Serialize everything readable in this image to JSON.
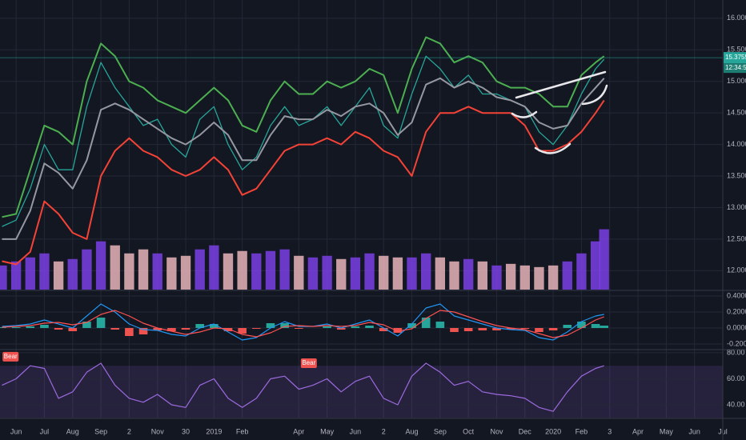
{
  "chart_data": [
    {
      "type": "line",
      "x": [
        -0.5,
        0,
        0.5,
        1,
        1.5,
        2,
        2.5,
        3,
        3.5,
        4,
        4.5,
        5,
        5.5,
        6,
        6.5,
        7,
        7.5,
        8,
        8.5,
        9,
        9.5,
        10,
        10.5,
        11,
        11.5,
        12,
        12.5,
        13,
        13.5,
        14,
        14.5,
        15,
        15.5,
        16,
        16.5,
        17,
        17.5,
        18,
        18.5,
        19,
        19.5,
        20,
        20.5,
        20.8
      ],
      "xlim": [
        -0.57,
        25
      ],
      "xticks": [
        {
          "value": 0,
          "label": "Jun"
        },
        {
          "value": 1,
          "label": "Jul"
        },
        {
          "value": 2,
          "label": "Aug"
        },
        {
          "value": 3,
          "label": "Sep"
        },
        {
          "value": 4,
          "label": "2"
        },
        {
          "value": 5,
          "label": "Nov"
        },
        {
          "value": 6,
          "label": "30"
        },
        {
          "value": 7,
          "label": "2019"
        },
        {
          "value": 8,
          "label": "Feb"
        },
        {
          "value": 10,
          "label": "Apr"
        },
        {
          "value": 11,
          "label": "May"
        },
        {
          "value": 12,
          "label": "Jun"
        },
        {
          "value": 13,
          "label": "2"
        },
        {
          "value": 14,
          "label": "Aug"
        },
        {
          "value": 15,
          "label": "Sep"
        },
        {
          "value": 16,
          "label": "Oct"
        },
        {
          "value": 17,
          "label": "Nov"
        },
        {
          "value": 18,
          "label": "Dec"
        },
        {
          "value": 19,
          "label": "2020"
        },
        {
          "value": 20,
          "label": "Feb"
        },
        {
          "value": 21,
          "label": "3"
        },
        {
          "value": 22,
          "label": "Apr"
        },
        {
          "value": 23,
          "label": "May"
        },
        {
          "value": 24,
          "label": "Jun"
        },
        {
          "value": 25,
          "label": "Jul"
        }
      ],
      "ylim": [
        11.7,
        16.29
      ],
      "yticks": [
        {
          "value": 16,
          "label": "16.00000"
        },
        {
          "value": 15.5,
          "label": "15.50000"
        },
        {
          "value": 15,
          "label": "15.00000"
        },
        {
          "value": 14.5,
          "label": "14.50000"
        },
        {
          "value": 14,
          "label": "14.00000"
        },
        {
          "value": 13.5,
          "label": "13.50000"
        },
        {
          "value": 13,
          "label": "13.00000"
        },
        {
          "value": 12.5,
          "label": "12.50000"
        },
        {
          "value": 12,
          "label": "12.00000"
        }
      ],
      "grid": true,
      "series": [
        {
          "color": "#26a69a",
          "width": 1.3,
          "values": [
            12.7,
            12.8,
            13.3,
            14.0,
            13.6,
            13.6,
            14.6,
            15.3,
            14.9,
            14.6,
            14.3,
            14.4,
            14.0,
            13.8,
            14.4,
            14.6,
            14.0,
            13.6,
            13.8,
            14.3,
            14.6,
            14.3,
            14.4,
            14.6,
            14.3,
            14.6,
            14.9,
            14.3,
            14.1,
            14.8,
            15.4,
            15.2,
            14.9,
            15.1,
            14.8,
            14.8,
            14.7,
            14.6,
            14.2,
            14.0,
            14.3,
            14.8,
            15.2,
            15.35
          ]
        },
        {
          "color": "#4caf50",
          "width": 2,
          "values": [
            12.85,
            12.9,
            13.6,
            14.3,
            14.2,
            14.0,
            15.0,
            15.6,
            15.4,
            15.0,
            14.9,
            14.7,
            14.6,
            14.5,
            14.7,
            14.9,
            14.7,
            14.3,
            14.2,
            14.7,
            15.0,
            14.8,
            14.8,
            15.0,
            14.9,
            15.0,
            15.2,
            15.1,
            14.5,
            15.2,
            15.7,
            15.6,
            15.3,
            15.4,
            15.3,
            15.0,
            14.9,
            14.9,
            14.8,
            14.6,
            14.6,
            15.1,
            15.3,
            15.4
          ]
        },
        {
          "color": "#9598a1",
          "width": 2,
          "values": [
            12.5,
            12.5,
            12.95,
            13.7,
            13.55,
            13.3,
            13.75,
            14.55,
            14.65,
            14.55,
            14.4,
            14.25,
            14.1,
            14.0,
            14.15,
            14.35,
            14.15,
            13.75,
            13.75,
            14.15,
            14.45,
            14.4,
            14.4,
            14.55,
            14.45,
            14.6,
            14.65,
            14.5,
            14.15,
            14.35,
            14.95,
            15.05,
            14.9,
            15.0,
            14.9,
            14.75,
            14.7,
            14.6,
            14.35,
            14.25,
            14.3,
            14.65,
            14.9,
            15.05
          ]
        },
        {
          "color": "#f44336",
          "width": 2,
          "values": [
            12.15,
            12.1,
            12.3,
            13.1,
            12.9,
            12.6,
            12.5,
            13.5,
            13.9,
            14.1,
            13.9,
            13.8,
            13.6,
            13.5,
            13.6,
            13.8,
            13.6,
            13.2,
            13.3,
            13.6,
            13.9,
            14.0,
            14.0,
            14.1,
            14.0,
            14.2,
            14.1,
            13.9,
            13.8,
            13.5,
            14.2,
            14.5,
            14.5,
            14.6,
            14.5,
            14.5,
            14.5,
            14.3,
            13.9,
            13.9,
            14.0,
            14.2,
            14.5,
            14.7
          ]
        }
      ],
      "volume": {
        "ylim": [
          0,
          360
        ],
        "up_color": "#7b3fe4",
        "down_color": "#e8b4b8",
        "values": [
          30,
          35,
          40,
          45,
          35,
          38,
          50,
          60,
          55,
          45,
          50,
          45,
          40,
          42,
          50,
          55,
          45,
          48,
          45,
          48,
          50,
          42,
          40,
          42,
          38,
          40,
          45,
          42,
          40,
          40,
          45,
          40,
          35,
          38,
          35,
          30,
          32,
          30,
          28,
          30,
          35,
          45,
          60,
          75
        ]
      },
      "last_price": {
        "value": 15.37557,
        "label": "15.37557"
      },
      "countdown": "12:34:59"
    },
    {
      "type": "macd",
      "x": [
        -0.5,
        0,
        0.5,
        1,
        1.5,
        2,
        2.5,
        3,
        3.5,
        4,
        4.5,
        5,
        5.5,
        6,
        6.5,
        7,
        7.5,
        8,
        8.5,
        9,
        9.5,
        10,
        10.5,
        11,
        11.5,
        12,
        12.5,
        13,
        13.5,
        14,
        14.5,
        15,
        15.5,
        16,
        16.5,
        17,
        17.5,
        18,
        18.5,
        19,
        19.5,
        20,
        20.5,
        20.8
      ],
      "xlim": [
        -0.57,
        25
      ],
      "ylim": [
        -0.26,
        0.46
      ],
      "yticks": [
        {
          "value": 0.4,
          "label": "0.40000"
        },
        {
          "value": 0.2,
          "label": "0.20000"
        },
        {
          "value": 0,
          "label": "0.00000"
        },
        {
          "value": -0.2,
          "label": "-0.20000"
        }
      ],
      "series": [
        {
          "style": "histogram",
          "colors": [
            "#26a69a",
            "#ef5350"
          ],
          "values": [
            0.01,
            0.01,
            0.02,
            0.04,
            -0.02,
            -0.04,
            0.08,
            0.13,
            -0.02,
            -0.1,
            -0.08,
            -0.03,
            -0.04,
            -0.02,
            0.05,
            0.05,
            -0.04,
            -0.07,
            -0.01,
            0.06,
            0.06,
            -0.01,
            0,
            0.02,
            -0.02,
            0.02,
            0.03,
            -0.04,
            -0.06,
            0.06,
            0.13,
            0.08,
            -0.05,
            -0.04,
            -0.03,
            -0.03,
            -0.02,
            -0.01,
            -0.05,
            -0.03,
            0.04,
            0.08,
            0.05,
            0.03
          ]
        },
        {
          "color": "#2196f3",
          "width": 1.2,
          "values": [
            0.02,
            0.03,
            0.05,
            0.1,
            0.05,
            0.0,
            0.15,
            0.3,
            0.2,
            0.05,
            -0.02,
            -0.03,
            -0.08,
            -0.1,
            0.0,
            0.05,
            -0.05,
            -0.15,
            -0.12,
            0.0,
            0.08,
            0.02,
            0.02,
            0.05,
            0.0,
            0.05,
            0.1,
            0.0,
            -0.1,
            0.05,
            0.25,
            0.3,
            0.15,
            0.1,
            0.05,
            0.0,
            -0.02,
            -0.03,
            -0.12,
            -0.15,
            -0.05,
            0.08,
            0.15,
            0.17
          ]
        },
        {
          "color": "#ff5252",
          "width": 1.2,
          "values": [
            0.01,
            0.02,
            0.03,
            0.06,
            0.07,
            0.04,
            0.07,
            0.17,
            0.22,
            0.15,
            0.06,
            0.0,
            -0.04,
            -0.08,
            -0.05,
            0.0,
            -0.01,
            -0.08,
            -0.11,
            -0.06,
            0.02,
            0.03,
            0.02,
            0.03,
            0.02,
            0.03,
            0.07,
            0.04,
            -0.04,
            -0.01,
            0.12,
            0.22,
            0.2,
            0.14,
            0.08,
            0.03,
            0.0,
            -0.02,
            -0.07,
            -0.12,
            -0.09,
            0.0,
            0.1,
            0.14
          ]
        }
      ]
    },
    {
      "type": "line",
      "x": [
        -0.5,
        0,
        0.5,
        1,
        1.5,
        2,
        2.5,
        3,
        3.5,
        4,
        4.5,
        5,
        5.5,
        6,
        6.5,
        7,
        7.5,
        8,
        8.5,
        9,
        9.5,
        10,
        10.5,
        11,
        11.5,
        12,
        12.5,
        13,
        13.5,
        14,
        14.5,
        15,
        15.5,
        16,
        16.5,
        17,
        17.5,
        18,
        18.5,
        19,
        19.5,
        20,
        20.5,
        20.8
      ],
      "xlim": [
        -0.57,
        25
      ],
      "ylim": [
        30.2,
        81.8
      ],
      "yticks": [
        {
          "value": 80,
          "label": "80.00"
        },
        {
          "value": 60,
          "label": "60.00"
        },
        {
          "value": 40,
          "label": "40.00"
        }
      ],
      "band": [
        30,
        70
      ],
      "series": [
        {
          "color": "#9c6ade",
          "width": 1.2,
          "values": [
            55,
            60,
            70,
            68,
            45,
            50,
            65,
            72,
            55,
            45,
            42,
            48,
            40,
            38,
            55,
            60,
            45,
            38,
            45,
            60,
            62,
            52,
            55,
            60,
            50,
            58,
            62,
            45,
            40,
            62,
            72,
            65,
            55,
            58,
            50,
            48,
            47,
            45,
            38,
            35,
            50,
            62,
            68,
            70
          ]
        }
      ],
      "annotations": [
        {
          "text": "Bear",
          "x": -0.45,
          "y": 77
        },
        {
          "text": "Bear",
          "x": 10.1,
          "y": 72
        }
      ]
    }
  ]
}
